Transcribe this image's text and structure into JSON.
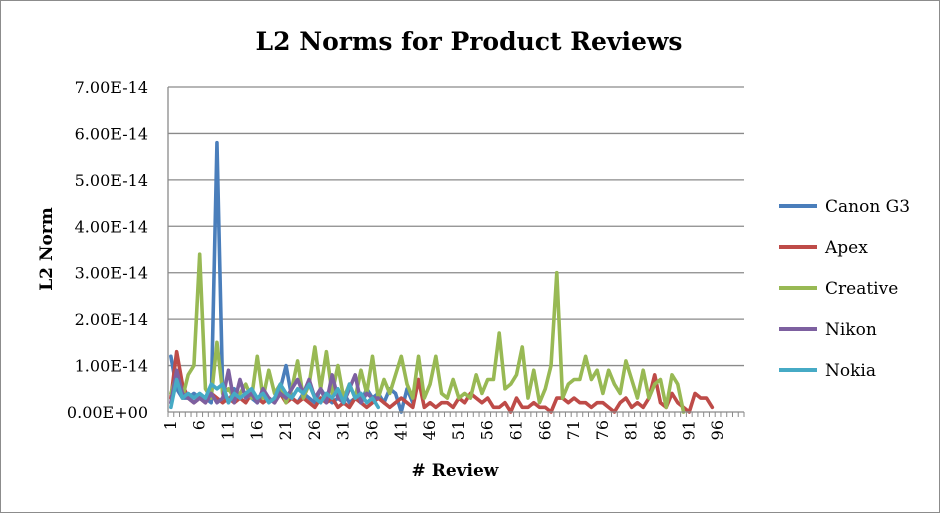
{
  "chart_data": {
    "type": "line",
    "title": "L2 Norms for Product Reviews",
    "xlabel": "# Review",
    "ylabel": "L2 Norm",
    "ylim": [
      0,
      7e-14
    ],
    "yticks": [
      "0.00E+00",
      "1.00E-14",
      "2.00E-14",
      "3.00E-14",
      "4.00E-14",
      "5.00E-14",
      "6.00E-14",
      "7.00E-14"
    ],
    "xticks": [
      "1",
      "6",
      "11",
      "16",
      "21",
      "26",
      "31",
      "36",
      "41",
      "46",
      "51",
      "56",
      "61",
      "66",
      "71",
      "76",
      "81",
      "86",
      "91",
      "96"
    ],
    "x_categories_count": 100,
    "grid": true,
    "legend_position": "right",
    "series": [
      {
        "name": "Canon G3",
        "color": "#4a7ebb",
        "values": [
          1.2,
          0.5,
          0.3,
          0.3,
          0.4,
          0.3,
          0.3,
          0.2,
          5.8,
          0.4,
          0.2,
          0.5,
          0.3,
          0.4,
          0.3,
          0.2,
          0.4,
          0.3,
          0.2,
          0.5,
          1.0,
          0.3,
          0.2,
          0.4,
          0.3,
          0.2,
          0.5,
          0.3,
          0.2,
          0.3,
          0.4,
          0.2,
          0.3,
          0.2,
          0.5,
          0.3,
          0.4,
          0.2,
          0.5,
          0.4,
          0.0,
          0.5,
          0.2
        ]
      },
      {
        "name": "Apex",
        "color": "#be4b48",
        "values": [
          0.3,
          1.3,
          0.6,
          0.3,
          0.2,
          0.3,
          0.2,
          0.4,
          0.3,
          0.2,
          0.3,
          0.2,
          0.3,
          0.2,
          0.4,
          0.3,
          0.2,
          0.3,
          0.2,
          0.4,
          0.2,
          0.3,
          0.2,
          0.3,
          0.2,
          0.1,
          0.3,
          0.2,
          0.3,
          0.1,
          0.2,
          0.1,
          0.3,
          0.2,
          0.1,
          0.2,
          0.3,
          0.2,
          0.1,
          0.2,
          0.3,
          0.2,
          0.1,
          0.7,
          0.1,
          0.2,
          0.1,
          0.2,
          0.2,
          0.1,
          0.3,
          0.2,
          0.4,
          0.3,
          0.2,
          0.3,
          0.1,
          0.1,
          0.2,
          0.0,
          0.3,
          0.1,
          0.1,
          0.2,
          0.1,
          0.1,
          0.0,
          0.3,
          0.3,
          0.2,
          0.3,
          0.2,
          0.2,
          0.1,
          0.2,
          0.2,
          0.1,
          0.0,
          0.2,
          0.3,
          0.1,
          0.2,
          0.1,
          0.3,
          0.8,
          0.2,
          0.1,
          0.4,
          0.2,
          0.1,
          0.0,
          0.4,
          0.3,
          0.3,
          0.1
        ]
      },
      {
        "name": "Creative",
        "color": "#98b954",
        "values": [
          0.4,
          0.8,
          0.3,
          0.8,
          1.0,
          3.4,
          0.5,
          0.3,
          1.5,
          0.4,
          0.5,
          0.3,
          0.4,
          0.6,
          0.3,
          1.2,
          0.3,
          0.9,
          0.4,
          0.6,
          0.2,
          0.5,
          1.1,
          0.3,
          0.6,
          1.4,
          0.5,
          1.3,
          0.4,
          1.0,
          0.3,
          0.6,
          0.3,
          0.9,
          0.4,
          1.2,
          0.3,
          0.7,
          0.4,
          0.8,
          1.2,
          0.6,
          0.3,
          1.2,
          0.3,
          0.6,
          1.2,
          0.4,
          0.3,
          0.7,
          0.3,
          0.4,
          0.3,
          0.8,
          0.4,
          0.7,
          0.7,
          1.7,
          0.5,
          0.6,
          0.8,
          1.4,
          0.3,
          0.9,
          0.2,
          0.5,
          1.0,
          3.0,
          0.3,
          0.6,
          0.7,
          0.7,
          1.2,
          0.7,
          0.9,
          0.4,
          0.9,
          0.6,
          0.4,
          1.1,
          0.7,
          0.3,
          0.9,
          0.3,
          0.6,
          0.7,
          0.1,
          0.8,
          0.6,
          0.0
        ]
      },
      {
        "name": "Nikon",
        "color": "#7d60a0",
        "values": [
          0.2,
          0.9,
          0.4,
          0.3,
          0.2,
          0.3,
          0.2,
          0.4,
          0.2,
          0.3,
          0.9,
          0.2,
          0.7,
          0.3,
          0.4,
          0.2,
          0.5,
          0.3,
          0.2,
          0.4,
          0.3,
          0.5,
          0.7,
          0.4,
          0.7,
          0.3,
          0.5,
          0.2,
          0.8,
          0.3,
          0.2,
          0.5,
          0.8,
          0.2,
          0.4,
          0.3,
          0.3
        ]
      },
      {
        "name": "Nokia",
        "color": "#46aac5",
        "values": [
          0.1,
          0.7,
          0.3,
          0.4,
          0.3,
          0.4,
          0.3,
          0.6,
          0.5,
          0.6,
          0.2,
          0.4,
          0.3,
          0.4,
          0.5,
          0.3,
          0.4,
          0.2,
          0.3,
          0.6,
          0.4,
          0.3,
          0.5,
          0.4,
          0.6,
          0.3,
          0.2,
          0.4,
          0.3,
          0.5,
          0.2,
          0.6,
          0.3,
          0.4,
          0.2,
          0.3,
          0.1
        ]
      }
    ]
  }
}
